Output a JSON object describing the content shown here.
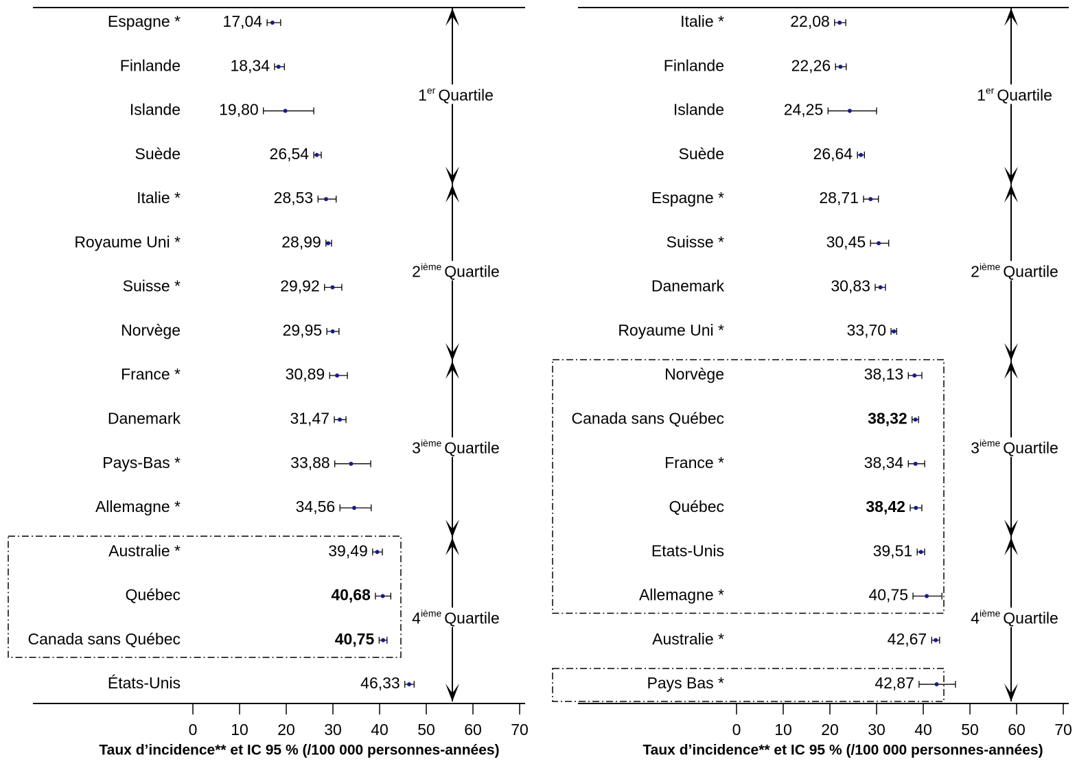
{
  "chart_data": [
    {
      "type": "forest",
      "categories": [
        "Espagne *",
        "Finlande",
        "Islande",
        "Suède",
        "Italie *",
        "Royaume Uni *",
        "Suisse *",
        "Norvège",
        "France *",
        "Danemark",
        "Pays-Bas *",
        "Allemagne *",
        "Australie *",
        "Québec",
        "Canada sans Québec",
        "États-Unis"
      ],
      "values": [
        17.04,
        18.34,
        19.8,
        26.54,
        28.53,
        28.99,
        29.92,
        29.95,
        30.89,
        31.47,
        33.88,
        34.56,
        39.49,
        40.68,
        40.75,
        46.33
      ],
      "value_labels": [
        "17,04",
        "18,34",
        "19,80",
        "26,54",
        "28,53",
        "28,99",
        "29,92",
        "29,95",
        "30,89",
        "31,47",
        "33,88",
        "34,56",
        "39,49",
        "40,68",
        "40,75",
        "46,33"
      ],
      "lower": [
        15.9,
        17.5,
        15.1,
        25.9,
        26.8,
        28.5,
        28.2,
        28.7,
        29.3,
        30.3,
        30.4,
        31.5,
        38.5,
        39.1,
        39.9,
        45.4
      ],
      "upper": [
        18.8,
        19.6,
        25.9,
        27.5,
        30.7,
        29.7,
        31.9,
        31.3,
        33.1,
        32.8,
        38.1,
        38.2,
        40.6,
        42.4,
        41.6,
        47.4
      ],
      "bold_labels": [
        13,
        14
      ],
      "boxed_rows": [
        [
          12,
          14
        ]
      ],
      "quartiles": [
        {
          "number": "1",
          "suffix": "er",
          "text": "Quartile",
          "rows": [
            0,
            3
          ]
        },
        {
          "number": "2",
          "suffix": "ième",
          "text": "Quartile",
          "rows": [
            4,
            7
          ]
        },
        {
          "number": "3",
          "suffix": "ième",
          "text": "Quartile",
          "rows": [
            8,
            11
          ]
        },
        {
          "number": "4",
          "suffix": "ième",
          "text": "Quartile",
          "rows": [
            12,
            15
          ]
        }
      ],
      "xlim": [
        0,
        70
      ],
      "xticks": [
        0,
        10,
        20,
        30,
        40,
        50,
        60,
        70
      ],
      "xlabel": "Taux d’incidence** et IC 95 % (/100 000 personnes-années)",
      "color": "#1a1a8c"
    },
    {
      "type": "forest",
      "categories": [
        "Italie *",
        "Finlande",
        "Islande",
        "Suède",
        "Espagne *",
        "Suisse *",
        "Danemark",
        "Royaume Uni *",
        "Norvège",
        "Canada sans Québec",
        "France *",
        "Québec",
        "Etats-Unis",
        "Allemagne *",
        "Australie *",
        "Pays Bas *"
      ],
      "values": [
        22.08,
        22.26,
        24.25,
        26.64,
        28.71,
        30.45,
        30.83,
        33.7,
        38.13,
        38.32,
        38.34,
        38.42,
        39.51,
        40.75,
        42.67,
        42.87
      ],
      "value_labels": [
        "22,08",
        "22,26",
        "24,25",
        "26,64",
        "28,71",
        "30,45",
        "30,83",
        "33,70",
        "38,13",
        "38,32",
        "38,34",
        "38,42",
        "39,51",
        "40,75",
        "42,67",
        "42,87"
      ],
      "lower": [
        21.0,
        21.2,
        19.6,
        25.9,
        27.2,
        28.7,
        29.7,
        33.1,
        36.8,
        37.6,
        36.8,
        37.2,
        38.7,
        37.8,
        41.8,
        39.1
      ],
      "upper": [
        23.4,
        23.5,
        30.0,
        27.4,
        30.4,
        32.6,
        31.9,
        34.3,
        39.7,
        39.0,
        40.3,
        39.7,
        40.3,
        44.0,
        43.5,
        46.9
      ],
      "bold_labels": [
        9,
        11
      ],
      "boxed_rows": [
        [
          8,
          13
        ],
        [
          15,
          15
        ]
      ],
      "quartiles": [
        {
          "number": "1",
          "suffix": "er",
          "text": "Quartile",
          "rows": [
            0,
            3
          ]
        },
        {
          "number": "2",
          "suffix": "ième",
          "text": "Quartile",
          "rows": [
            4,
            7
          ]
        },
        {
          "number": "3",
          "suffix": "ième",
          "text": "Quartile",
          "rows": [
            8,
            11
          ]
        },
        {
          "number": "4",
          "suffix": "ième",
          "text": "Quartile",
          "rows": [
            12,
            15
          ]
        }
      ],
      "xlim": [
        0,
        70
      ],
      "xticks": [
        0,
        10,
        20,
        30,
        40,
        50,
        60,
        70
      ],
      "xlabel": "Taux d’incidence** et IC 95 % (/100 000 personnes-années)",
      "color": "#1a1a8c"
    }
  ]
}
